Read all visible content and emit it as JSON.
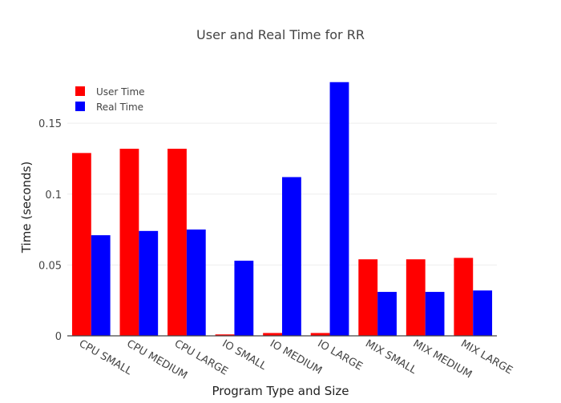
{
  "chart_data": {
    "type": "bar",
    "title": "User and Real Time for RR",
    "xlabel": "Program Type and Size",
    "ylabel": "Time (seconds)",
    "categories": [
      "CPU SMALL",
      "CPU MEDIUM",
      "CPU LARGE",
      "IO SMALL",
      "IO MEDIUM",
      "IO LARGE",
      "MIX SMALL",
      "MIX MEDIUM",
      "MIX LARGE"
    ],
    "series": [
      {
        "name": "User Time",
        "color": "#ff0000",
        "values": [
          0.129,
          0.132,
          0.132,
          0.001,
          0.002,
          0.002,
          0.054,
          0.054,
          0.055
        ]
      },
      {
        "name": "Real Time",
        "color": "#0000ff",
        "values": [
          0.071,
          0.074,
          0.075,
          0.053,
          0.112,
          0.179,
          0.031,
          0.031,
          0.032
        ]
      }
    ],
    "ylim": [
      0,
      0.189
    ],
    "yticks": [
      0,
      0.05,
      0.1,
      0.15
    ],
    "ytick_labels": [
      "0",
      "0.05",
      "0.1",
      "0.15"
    ],
    "grid": true,
    "legend_position": "top-left"
  }
}
